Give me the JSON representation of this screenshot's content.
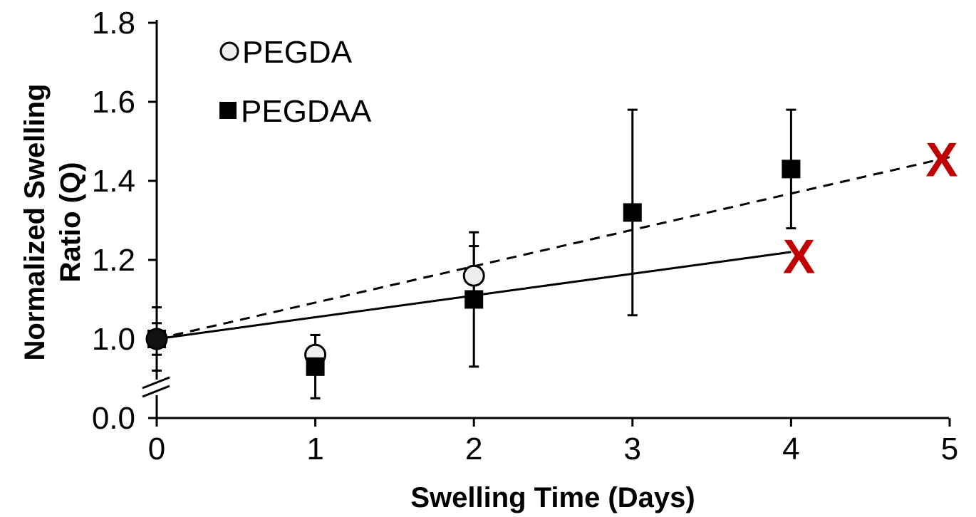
{
  "chart_data": {
    "type": "scatter",
    "xlabel": "Swelling Time (Days)",
    "ylabel_lines": [
      "Normalized Swelling",
      "Ratio (Q)"
    ],
    "x_ticks": [
      "0",
      "1",
      "2",
      "3",
      "4",
      "5"
    ],
    "y_ticks": [
      "0.0",
      "1.0",
      "1.2",
      "1.4",
      "1.6",
      "1.8"
    ],
    "xlim": [
      0,
      5
    ],
    "ylim": [
      0.8,
      1.8
    ],
    "y_axis_break": true,
    "grid": false,
    "legend_position": "top-left",
    "series": [
      {
        "name": "PEGDA",
        "marker": "open-circle",
        "x": [
          0,
          1,
          2
        ],
        "y": [
          1.0,
          0.96,
          1.16
        ],
        "error": [
          0.08,
          0.05,
          0.075
        ],
        "trendline": {
          "style": "dashed",
          "x": [
            0,
            5
          ],
          "y": [
            1.0,
            1.46
          ]
        }
      },
      {
        "name": "PEGDAA",
        "marker": "filled-square",
        "x": [
          0,
          1,
          2,
          3,
          4
        ],
        "y": [
          1.0,
          0.93,
          1.1,
          1.32,
          1.43
        ],
        "error": [
          0.04,
          0.08,
          0.17,
          0.26,
          0.15
        ],
        "trendline": {
          "style": "solid",
          "x": [
            0,
            4
          ],
          "y": [
            1.0,
            1.22
          ]
        }
      }
    ],
    "annotations": [
      {
        "text": "X",
        "x": 4.05,
        "y": 1.21,
        "color": "#c00000"
      },
      {
        "text": "X",
        "x": 4.95,
        "y": 1.455,
        "color": "#c00000"
      }
    ]
  }
}
